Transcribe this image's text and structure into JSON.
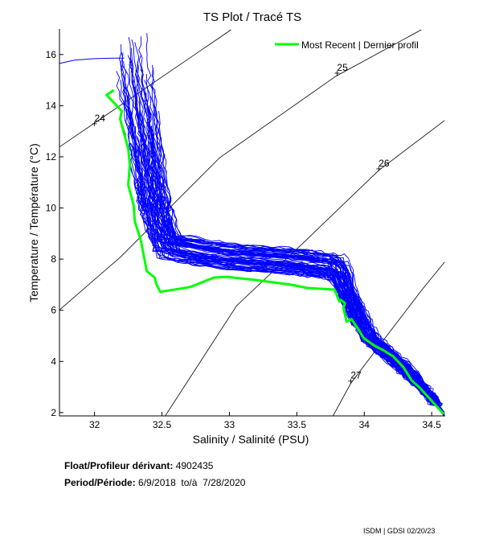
{
  "chart_data": {
    "type": "line",
    "title": "TS Plot / Tracé TS",
    "xlabel": "Salinity / Salinité (PSU)",
    "ylabel": "Temperature / Température (°C)",
    "xlim": [
      31.74,
      34.6
    ],
    "ylim": [
      1.87,
      17.0
    ],
    "xticks": [
      32,
      32.5,
      33,
      33.5,
      34,
      34.5
    ],
    "xtick_labels": [
      "32",
      "32.5",
      "33",
      "33.5",
      "34",
      "34.5"
    ],
    "yticks": [
      2,
      4,
      6,
      8,
      10,
      12,
      14,
      16
    ],
    "ytick_labels": [
      "2",
      "4",
      "6",
      "8",
      "10",
      "12",
      "14",
      "16"
    ],
    "grid": false,
    "legend": {
      "position": "top-right",
      "entries": [
        "Most Recent | Dernier profil"
      ]
    },
    "colors": {
      "profiles": "#0000ff",
      "most_recent": "#00ff00",
      "contours": "#000000"
    },
    "most_recent": {
      "name": "Most Recent | Dernier profil",
      "salinity": [
        32.143,
        32.089,
        32.202,
        32.19,
        32.25,
        32.262,
        32.25,
        32.29,
        32.298,
        32.327,
        32.345,
        32.387,
        32.446,
        32.458,
        32.488,
        32.708,
        32.887,
        32.982,
        33.185,
        33.458,
        33.577,
        33.78,
        33.815,
        33.827,
        33.857,
        33.845,
        33.869,
        33.905,
        33.958,
        33.994,
        34.077,
        34.137,
        34.214,
        34.292,
        34.351,
        34.411,
        34.589
      ],
      "temperature": [
        14.61,
        14.42,
        13.79,
        13.48,
        12.31,
        11.69,
        10.9,
        10.11,
        9.48,
        9.01,
        8.7,
        7.53,
        7.28,
        7.03,
        6.72,
        6.91,
        7.28,
        7.31,
        7.19,
        7.0,
        6.87,
        6.81,
        6.34,
        6.4,
        6.28,
        6.09,
        5.55,
        5.65,
        5.24,
        4.92,
        4.61,
        4.45,
        4.2,
        3.76,
        3.26,
        2.97,
        1.94
      ]
    },
    "profiles_envelope": {
      "count": 70,
      "salinity": [
        32.27,
        32.3,
        32.36,
        32.42,
        32.47,
        32.55,
        33.0,
        33.5,
        33.8,
        33.93,
        34.05,
        34.25,
        34.45,
        34.59
      ],
      "temperature": [
        16.9,
        15.0,
        13.0,
        11.0,
        9.6,
        8.3,
        7.9,
        7.7,
        7.5,
        6.0,
        4.8,
        3.9,
        2.9,
        1.94
      ]
    },
    "extra_profile": {
      "salinity": [
        31.74,
        31.85,
        32.0,
        32.15,
        32.22
      ],
      "temperature": [
        15.65,
        15.78,
        15.84,
        15.86,
        15.86
      ]
    },
    "density_contours": [
      {
        "label": "24",
        "salinity": [
          31.738,
          33.012
        ],
        "temperature": [
          12.38,
          16.97
        ],
        "label_at": [
          32.0,
          13.48
        ]
      },
      {
        "label": "25",
        "salinity": [
          31.744,
          32.19,
          32.929,
          33.786,
          34.423
        ],
        "temperature": [
          6.03,
          8.07,
          11.97,
          15.14,
          16.97
        ],
        "label_at": [
          33.798,
          15.46
        ]
      },
      {
        "label": "26",
        "salinity": [
          32.524,
          33.054,
          33.56,
          34.107,
          34.595
        ],
        "temperature": [
          1.87,
          6.18,
          8.7,
          11.47,
          13.42
        ],
        "label_at": [
          34.107,
          11.72
        ]
      },
      {
        "label": "27",
        "salinity": [
          33.768,
          33.899,
          34.155,
          34.429,
          34.595
        ],
        "temperature": [
          1.87,
          3.13,
          4.92,
          6.81,
          7.88
        ],
        "label_at": [
          33.899,
          3.42
        ]
      }
    ]
  },
  "info": {
    "float_label": "Float/Profileur dérivant:",
    "float_value": "4902435",
    "period_label": "Period/Période:",
    "period_value": "6/9/2018  to/à  7/28/2020"
  },
  "credit": "ISDM | GDSI 02/20/23"
}
